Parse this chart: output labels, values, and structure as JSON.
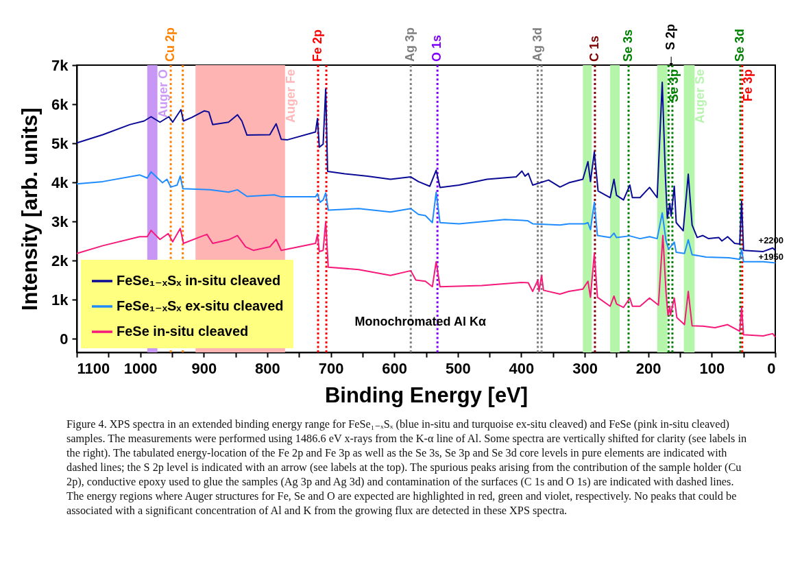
{
  "chart_data": {
    "type": "line",
    "xlabel": "Binding Energy [eV]",
    "ylabel": "Intensity [arb. units]",
    "xlim": [
      1100,
      0
    ],
    "ylim": [
      -350,
      7000
    ],
    "xticks": [
      1100,
      {
        "value": 1050,
        "label": null
      },
      1000,
      {
        "value": 950,
        "label": null
      },
      900,
      {
        "value": 850,
        "label": null
      },
      800,
      {
        "value": 750,
        "label": null
      },
      700,
      {
        "value": 650,
        "label": null
      },
      600,
      {
        "value": 550,
        "label": null
      },
      500,
      {
        "value": 450,
        "label": null
      },
      400,
      {
        "value": 350,
        "label": null
      },
      300,
      {
        "value": 250,
        "label": null
      },
      200,
      {
        "value": 150,
        "label": null
      },
      100,
      {
        "value": 50,
        "label": null
      },
      0
    ],
    "yticks": [
      0,
      {
        "value": 1000,
        "label": "1k"
      },
      {
        "value": 2000,
        "label": "2k"
      },
      {
        "value": 3000,
        "label": "3k"
      },
      {
        "value": 4000,
        "label": "4k"
      },
      {
        "value": 5000,
        "label": "5k"
      },
      {
        "value": 6000,
        "label": "6k"
      },
      {
        "value": 7000,
        "label": "7k"
      }
    ],
    "legend": "bottom left",
    "series": [
      {
        "name": "FeSe₁₋ₓSₓ in-situ cleaved",
        "color": "#0a0a96",
        "x": [
          1100,
          1059,
          1016,
          994,
          983,
          969,
          955,
          949,
          936,
          932,
          919,
          899,
          892,
          886,
          861,
          847,
          840,
          832,
          796,
          786,
          778,
          768,
          724,
          721,
          718,
          712,
          708,
          705,
          678,
          642,
          606,
          574,
          562,
          544,
          534,
          528,
          498,
          454,
          408,
          399,
          394,
          389,
          382,
          357,
          339,
          325,
          303,
          295,
          291,
          285,
          279,
          260,
          254,
          250,
          239,
          229,
          225,
          213,
          198,
          186,
          178,
          173,
          170,
          166,
          164,
          159,
          156,
          145,
          137,
          131,
          123,
          114,
          105,
          89,
          84,
          75,
          64,
          56,
          53,
          50,
          19,
          4,
          0
        ],
        "values": [
          5010,
          5220,
          5480,
          5570,
          5680,
          5540,
          5680,
          5540,
          5860,
          5570,
          5660,
          5830,
          5800,
          5480,
          5540,
          5730,
          5570,
          5210,
          5220,
          5500,
          5100,
          5090,
          5290,
          5630,
          4900,
          4980,
          6390,
          4280,
          4220,
          4160,
          4080,
          4140,
          4020,
          3900,
          4310,
          3870,
          3930,
          4080,
          4140,
          4290,
          4160,
          4230,
          3930,
          4060,
          3880,
          3990,
          4080,
          4530,
          4020,
          4780,
          3780,
          3610,
          4080,
          3670,
          3550,
          3930,
          3610,
          3610,
          3870,
          3610,
          6560,
          4140,
          3080,
          3460,
          3140,
          3900,
          2970,
          2760,
          4210,
          2910,
          2590,
          2640,
          2560,
          2590,
          2500,
          2610,
          2440,
          2420,
          3520,
          2260,
          2230,
          2320,
          2260
        ]
      },
      {
        "name": "FeSe₁₋ₓSₓ ex-situ cleaved",
        "color": "#1e8cff",
        "x": [
          1100,
          1059,
          1001,
          989,
          983,
          965,
          958,
          952,
          942,
          937,
          933,
          890,
          861,
          847,
          832,
          789,
          778,
          724,
          721,
          717,
          712,
          708,
          704,
          656,
          606,
          574,
          562,
          551,
          540,
          534,
          528,
          498,
          426,
          390,
          382,
          339,
          325,
          300,
          295,
          291,
          285,
          280,
          260,
          254,
          250,
          229,
          213,
          198,
          186,
          178,
          172,
          168,
          159,
          156,
          143,
          137,
          131,
          109,
          73,
          56,
          53,
          50,
          19,
          0
        ],
        "values": [
          3960,
          4020,
          4190,
          4110,
          4270,
          3990,
          4080,
          3880,
          3930,
          4160,
          3840,
          3810,
          3750,
          3810,
          3640,
          3680,
          3630,
          3630,
          3710,
          3490,
          3550,
          3730,
          3290,
          3330,
          3240,
          3330,
          3180,
          3150,
          2970,
          3750,
          2970,
          2940,
          3050,
          3020,
          2940,
          2910,
          2940,
          2940,
          2970,
          2790,
          3490,
          2640,
          2590,
          2700,
          2590,
          2630,
          2560,
          2610,
          2560,
          3220,
          2500,
          2290,
          2470,
          2210,
          2180,
          2530,
          2150,
          2090,
          2070,
          2030,
          2290,
          1970,
          1970,
          1940
        ]
      },
      {
        "name": "FeSe in-situ cleaved",
        "color": "#f5197a",
        "x": [
          1100,
          1059,
          1001,
          989,
          983,
          969,
          956,
          949,
          937,
          932,
          908,
          895,
          886,
          861,
          847,
          834,
          822,
          796,
          786,
          778,
          724,
          721,
          718,
          712,
          708,
          704,
          656,
          606,
          574,
          566,
          551,
          540,
          534,
          528,
          462,
          400,
          389,
          382,
          374,
          372,
          368,
          365,
          339,
          325,
          303,
          295,
          291,
          285,
          280,
          260,
          254,
          250,
          239,
          229,
          225,
          213,
          198,
          184,
          177,
          172,
          169,
          166,
          165,
          159,
          155,
          143,
          137,
          131,
          114,
          95,
          75,
          56,
          53,
          50,
          19,
          4,
          0
        ],
        "values": [
          2180,
          2380,
          2610,
          2610,
          2770,
          2540,
          2690,
          2480,
          2820,
          2440,
          2590,
          2670,
          2440,
          2530,
          2640,
          2350,
          2260,
          2350,
          2540,
          2260,
          2440,
          2670,
          2230,
          2260,
          2990,
          1830,
          1770,
          1620,
          1740,
          1500,
          1470,
          1330,
          1970,
          1330,
          1360,
          1440,
          1430,
          1210,
          1500,
          1210,
          1620,
          1240,
          1140,
          1210,
          1270,
          1470,
          1060,
          2180,
          1060,
          830,
          1090,
          890,
          800,
          1040,
          830,
          830,
          1040,
          860,
          2640,
          1180,
          600,
          830,
          600,
          1040,
          540,
          360,
          1210,
          330,
          320,
          280,
          360,
          190,
          800,
          100,
          70,
          130,
          40
        ]
      }
    ],
    "bands": [
      {
        "axis": "x",
        "from": 989,
        "to": 973,
        "label": "Auger O",
        "color": "#c896f5"
      },
      {
        "axis": "x",
        "from": 913,
        "to": 772,
        "label": "Auger Fe",
        "color": "#ffb4b4"
      },
      {
        "axis": "x",
        "from": 303,
        "to": 289,
        "color": "#b4f5aa"
      },
      {
        "axis": "x",
        "from": 260,
        "to": 245,
        "color": "#b4f5aa"
      },
      {
        "axis": "x",
        "from": 186,
        "to": 170,
        "color": "#b4f5aa"
      },
      {
        "axis": "x",
        "from": 144,
        "to": 127,
        "label": "Auger Se",
        "color": "#b4f5aa"
      }
    ],
    "ref_lines": [
      {
        "axis": "x",
        "value": 952,
        "label": "Cu 2p",
        "color": "#ff8000",
        "line_style": "dotted"
      },
      {
        "axis": "x",
        "value": 933,
        "color": "#ff8000",
        "line_style": "dotted"
      },
      {
        "axis": "x",
        "value": 720,
        "label": "Fe 2p",
        "color": "#ff0000",
        "line_style": "dotted"
      },
      {
        "axis": "x",
        "value": 707,
        "color": "#ff0000",
        "line_style": "dotted"
      },
      {
        "axis": "x",
        "value": 574,
        "label": "Ag 3p",
        "color": "#808080",
        "line_style": "dotted"
      },
      {
        "axis": "x",
        "value": 532,
        "label": "O 1s",
        "color": "#8000ff",
        "line_style": "dotted"
      },
      {
        "axis": "x",
        "value": 374,
        "label": "Ag 3d",
        "color": "#808080",
        "line_style": "dotted"
      },
      {
        "axis": "x",
        "value": 368,
        "color": "#808080",
        "line_style": "dotted"
      },
      {
        "axis": "x",
        "value": 284,
        "label": "C 1s",
        "color": "#800000",
        "line_style": "dotted"
      },
      {
        "axis": "x",
        "value": 231,
        "label": "Se 3s",
        "color": "#008000",
        "line_style": "dotted"
      },
      {
        "axis": "x",
        "value": 168,
        "label": "Se 3p",
        "color": "#008000",
        "line_style": "dotted"
      },
      {
        "axis": "x",
        "value": 162,
        "color": "#008000",
        "line_style": "dotted"
      },
      {
        "axis": "x",
        "value": 55,
        "label": "Se 3d",
        "color": "#008000",
        "line_style": "dotted"
      },
      {
        "axis": "x",
        "value": 52,
        "label": "Fe 3p",
        "color": "#ff0000",
        "line_style": "dotted"
      }
    ],
    "annotations": [
      "Monochromated Al Kα",
      "Figure 4. XPS spectra in an extended binding energy range for FeSe₁₋ₓSₓ (blue in-situ and turquoise ex-situ cleaved) and FeSe (pink in-situ cleaved) samples. The measurements were performed using 1486.6 eV x-rays from the K-α line of Al. Some spectra are vertically shifted for clarity (see labels in the right). The tabulated energy-location of the Fe 2p and Fe 3p as well as the Se 3s, Se 3p and Se 3d core levels in pure elements are indicated with dashed lines; the S 2p level is indicated with an arrow (see labels at the top). The spurious peaks arising from the contribution of the sample holder (Cu 2p), conductive epoxy used to glue the samples (Ag 3p and Ag 3d) and contamination of the surfaces (C 1s and O 1s) are indicated with dashed lines. The energy regions where Auger structures for Fe, Se and O are expected are highlighted in red, green and violet, respectively. No peaks that could be associated with a significant concentration of Al and K from the growing flux are detected in these XPS spectra.",
      "S 2p",
      "+2200",
      "+1950"
    ]
  }
}
